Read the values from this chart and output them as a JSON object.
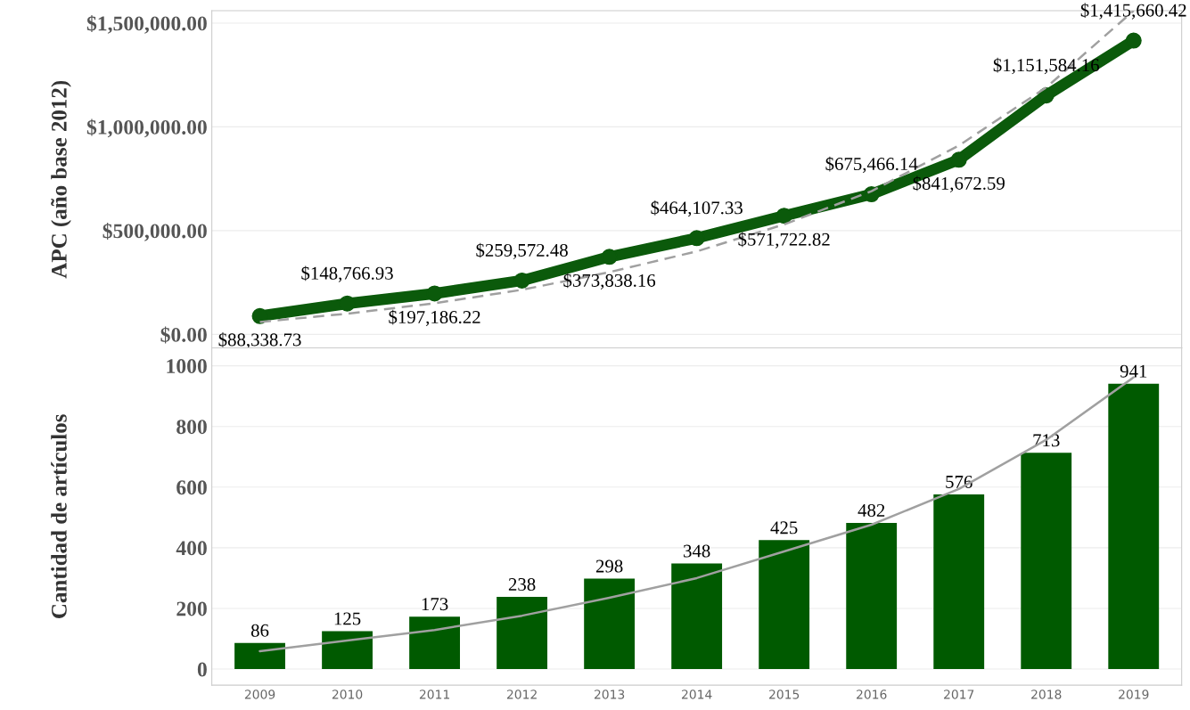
{
  "chart_data": [
    {
      "type": "line",
      "ylabel": "APC (año base 2012)",
      "categories": [
        "2009",
        "2010",
        "2011",
        "2012",
        "2013",
        "2014",
        "2015",
        "2016",
        "2017",
        "2018",
        "2019"
      ],
      "ylim": [
        -65000,
        1560000
      ],
      "yticks": [
        {
          "value": 0,
          "label": "$0.00"
        },
        {
          "value": 500000,
          "label": "$500,000.00"
        },
        {
          "value": 1000000,
          "label": "$1,000,000.00"
        },
        {
          "value": 1500000,
          "label": "$1,500,000.00"
        }
      ],
      "grid": "y",
      "tick_labels": "y",
      "series": [
        {
          "color": "#0b5a0b",
          "line_style": "solid",
          "marker": "circle",
          "values": [
            88338.73,
            148766.93,
            197186.22,
            259572.48,
            373838.16,
            464107.33,
            571722.82,
            675466.14,
            841672.59,
            1151584.16,
            1415660.42
          ],
          "value_labels": [
            "$88,338.73",
            "$148,766.93",
            "$197,186.22",
            "$259,572.48",
            "$373,838.16",
            "$464,107.33",
            "$571,722.82",
            "$675,466.14",
            "$841,672.59",
            "$1,151,584.16",
            "$1,415,660.42"
          ]
        },
        {
          "type": "line",
          "color": "#a0a0a0",
          "line_style": "dashed",
          "values": [
            60000,
            100000,
            150000,
            215000,
            300000,
            400000,
            530000,
            690000,
            910000,
            1190000,
            1560000
          ]
        }
      ]
    },
    {
      "type": "bar",
      "ylabel": "Cantidad de artículos",
      "categories": [
        "2009",
        "2010",
        "2011",
        "2012",
        "2013",
        "2014",
        "2015",
        "2016",
        "2017",
        "2018",
        "2019"
      ],
      "ylim": [
        -53,
        1059
      ],
      "yticks": [
        0,
        200,
        400,
        600,
        800,
        1000
      ],
      "grid": "y",
      "series": [
        {
          "color": "#005a00",
          "values": [
            86,
            125,
            173,
            238,
            298,
            348,
            425,
            482,
            576,
            713,
            941
          ],
          "value_labels": [
            "86",
            "125",
            "173",
            "238",
            "298",
            "348",
            "425",
            "482",
            "576",
            "713",
            "941"
          ]
        },
        {
          "type": "line",
          "color": "#a0a0a0",
          "line_style": "solid",
          "values": [
            59,
            94,
            129,
            176,
            235,
            300,
            388,
            476,
            594,
            756,
            962
          ]
        }
      ]
    }
  ]
}
